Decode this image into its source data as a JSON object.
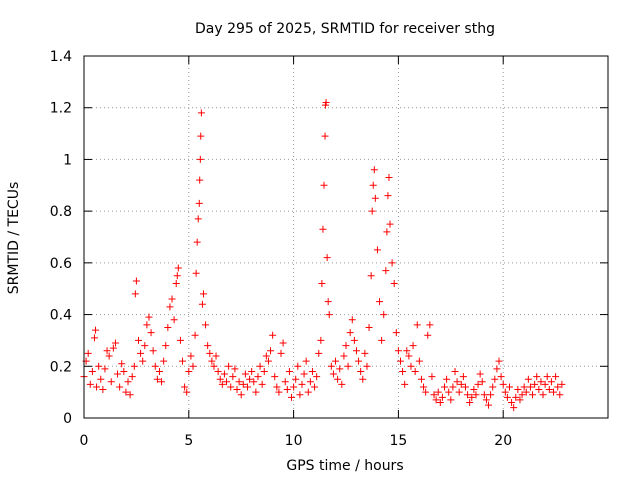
{
  "chart_data": {
    "type": "scatter",
    "title": "Day 295 of 2025, SRMTID for receiver sthg",
    "xlabel": "GPS time / hours",
    "ylabel": "SRMTID / TECUs",
    "xlim": [
      0,
      25
    ],
    "ylim": [
      0,
      1.4
    ],
    "x_ticks": [
      0,
      5,
      10,
      15,
      20
    ],
    "x_tick_labels": [
      "0",
      "5",
      "10",
      "15",
      "20"
    ],
    "y_ticks": [
      0,
      0.2,
      0.4,
      0.6,
      0.8,
      1,
      1.2,
      1.4
    ],
    "y_tick_labels": [
      "0",
      "0.2",
      "0.4",
      "0.6",
      "0.8",
      "1",
      "1.2",
      "1.4"
    ],
    "grid": true,
    "marker": "+",
    "series": [
      {
        "name": "SRMTID",
        "color": "#ff0000",
        "points": [
          [
            0.0,
            0.16
          ],
          [
            0.1,
            0.22
          ],
          [
            0.2,
            0.25
          ],
          [
            0.3,
            0.13
          ],
          [
            0.4,
            0.18
          ],
          [
            0.5,
            0.31
          ],
          [
            0.55,
            0.34
          ],
          [
            0.6,
            0.12
          ],
          [
            0.7,
            0.2
          ],
          [
            0.8,
            0.15
          ],
          [
            0.9,
            0.11
          ],
          [
            1.0,
            0.19
          ],
          [
            1.1,
            0.26
          ],
          [
            1.2,
            0.24
          ],
          [
            1.3,
            0.14
          ],
          [
            1.4,
            0.27
          ],
          [
            1.5,
            0.29
          ],
          [
            1.6,
            0.17
          ],
          [
            1.7,
            0.12
          ],
          [
            1.8,
            0.21
          ],
          [
            1.9,
            0.18
          ],
          [
            2.0,
            0.1
          ],
          [
            2.1,
            0.14
          ],
          [
            2.2,
            0.09
          ],
          [
            2.3,
            0.16
          ],
          [
            2.4,
            0.2
          ],
          [
            2.45,
            0.48
          ],
          [
            2.5,
            0.53
          ],
          [
            2.6,
            0.3
          ],
          [
            2.7,
            0.25
          ],
          [
            2.8,
            0.22
          ],
          [
            2.9,
            0.28
          ],
          [
            3.0,
            0.36
          ],
          [
            3.1,
            0.39
          ],
          [
            3.2,
            0.33
          ],
          [
            3.3,
            0.26
          ],
          [
            3.4,
            0.2
          ],
          [
            3.5,
            0.15
          ],
          [
            3.6,
            0.18
          ],
          [
            3.7,
            0.14
          ],
          [
            3.8,
            0.22
          ],
          [
            3.9,
            0.28
          ],
          [
            4.0,
            0.35
          ],
          [
            4.1,
            0.43
          ],
          [
            4.2,
            0.46
          ],
          [
            4.3,
            0.38
          ],
          [
            4.4,
            0.52
          ],
          [
            4.45,
            0.55
          ],
          [
            4.5,
            0.58
          ],
          [
            4.6,
            0.3
          ],
          [
            4.7,
            0.22
          ],
          [
            4.8,
            0.12
          ],
          [
            4.9,
            0.1
          ],
          [
            5.0,
            0.18
          ],
          [
            5.1,
            0.24
          ],
          [
            5.2,
            0.2
          ],
          [
            5.3,
            0.32
          ],
          [
            5.35,
            0.56
          ],
          [
            5.4,
            0.68
          ],
          [
            5.45,
            0.77
          ],
          [
            5.5,
            0.83
          ],
          [
            5.52,
            0.92
          ],
          [
            5.55,
            1.0
          ],
          [
            5.57,
            1.09
          ],
          [
            5.6,
            1.18
          ],
          [
            5.65,
            0.44
          ],
          [
            5.7,
            0.48
          ],
          [
            5.8,
            0.36
          ],
          [
            5.9,
            0.28
          ],
          [
            6.0,
            0.25
          ],
          [
            6.1,
            0.22
          ],
          [
            6.2,
            0.2
          ],
          [
            6.3,
            0.24
          ],
          [
            6.4,
            0.18
          ],
          [
            6.5,
            0.15
          ],
          [
            6.6,
            0.13
          ],
          [
            6.7,
            0.17
          ],
          [
            6.8,
            0.14
          ],
          [
            6.9,
            0.2
          ],
          [
            7.0,
            0.12
          ],
          [
            7.1,
            0.16
          ],
          [
            7.2,
            0.19
          ],
          [
            7.3,
            0.11
          ],
          [
            7.4,
            0.14
          ],
          [
            7.5,
            0.09
          ],
          [
            7.6,
            0.13
          ],
          [
            7.7,
            0.17
          ],
          [
            7.8,
            0.12
          ],
          [
            7.9,
            0.15
          ],
          [
            8.0,
            0.18
          ],
          [
            8.1,
            0.14
          ],
          [
            8.2,
            0.1
          ],
          [
            8.3,
            0.16
          ],
          [
            8.4,
            0.2
          ],
          [
            8.5,
            0.13
          ],
          [
            8.6,
            0.18
          ],
          [
            8.7,
            0.24
          ],
          [
            8.8,
            0.22
          ],
          [
            8.9,
            0.26
          ],
          [
            9.0,
            0.32
          ],
          [
            9.1,
            0.16
          ],
          [
            9.2,
            0.12
          ],
          [
            9.3,
            0.1
          ],
          [
            9.4,
            0.25
          ],
          [
            9.5,
            0.29
          ],
          [
            9.6,
            0.14
          ],
          [
            9.7,
            0.11
          ],
          [
            9.8,
            0.18
          ],
          [
            9.9,
            0.08
          ],
          [
            10.0,
            0.12
          ],
          [
            10.1,
            0.15
          ],
          [
            10.2,
            0.2
          ],
          [
            10.3,
            0.09
          ],
          [
            10.4,
            0.13
          ],
          [
            10.5,
            0.17
          ],
          [
            10.6,
            0.22
          ],
          [
            10.7,
            0.1
          ],
          [
            10.8,
            0.14
          ],
          [
            10.9,
            0.18
          ],
          [
            11.0,
            0.12
          ],
          [
            11.1,
            0.16
          ],
          [
            11.2,
            0.25
          ],
          [
            11.3,
            0.3
          ],
          [
            11.35,
            0.52
          ],
          [
            11.4,
            0.73
          ],
          [
            11.45,
            0.9
          ],
          [
            11.5,
            1.09
          ],
          [
            11.52,
            1.21
          ],
          [
            11.55,
            1.22
          ],
          [
            11.6,
            0.62
          ],
          [
            11.65,
            0.45
          ],
          [
            11.7,
            0.4
          ],
          [
            11.8,
            0.2
          ],
          [
            11.9,
            0.17
          ],
          [
            12.0,
            0.22
          ],
          [
            12.1,
            0.15
          ],
          [
            12.2,
            0.19
          ],
          [
            12.3,
            0.13
          ],
          [
            12.4,
            0.24
          ],
          [
            12.5,
            0.28
          ],
          [
            12.6,
            0.2
          ],
          [
            12.7,
            0.33
          ],
          [
            12.8,
            0.38
          ],
          [
            12.9,
            0.3
          ],
          [
            13.0,
            0.26
          ],
          [
            13.1,
            0.22
          ],
          [
            13.2,
            0.18
          ],
          [
            13.3,
            0.15
          ],
          [
            13.4,
            0.25
          ],
          [
            13.5,
            0.2
          ],
          [
            13.6,
            0.35
          ],
          [
            13.7,
            0.55
          ],
          [
            13.75,
            0.8
          ],
          [
            13.8,
            0.9
          ],
          [
            13.85,
            0.96
          ],
          [
            13.9,
            0.85
          ],
          [
            14.0,
            0.65
          ],
          [
            14.1,
            0.45
          ],
          [
            14.2,
            0.3
          ],
          [
            14.3,
            0.4
          ],
          [
            14.4,
            0.57
          ],
          [
            14.45,
            0.72
          ],
          [
            14.5,
            0.86
          ],
          [
            14.55,
            0.93
          ],
          [
            14.6,
            0.75
          ],
          [
            14.7,
            0.6
          ],
          [
            14.8,
            0.52
          ],
          [
            14.9,
            0.33
          ],
          [
            15.0,
            0.26
          ],
          [
            15.1,
            0.22
          ],
          [
            15.2,
            0.18
          ],
          [
            15.3,
            0.13
          ],
          [
            15.4,
            0.26
          ],
          [
            15.5,
            0.24
          ],
          [
            15.6,
            0.2
          ],
          [
            15.7,
            0.28
          ],
          [
            15.8,
            0.18
          ],
          [
            15.9,
            0.36
          ],
          [
            16.0,
            0.22
          ],
          [
            16.1,
            0.15
          ],
          [
            16.2,
            0.12
          ],
          [
            16.3,
            0.1
          ],
          [
            16.4,
            0.32
          ],
          [
            16.5,
            0.36
          ],
          [
            16.6,
            0.16
          ],
          [
            16.7,
            0.09
          ],
          [
            16.8,
            0.07
          ],
          [
            16.9,
            0.1
          ],
          [
            17.0,
            0.06
          ],
          [
            17.1,
            0.08
          ],
          [
            17.2,
            0.12
          ],
          [
            17.3,
            0.15
          ],
          [
            17.4,
            0.1
          ],
          [
            17.5,
            0.07
          ],
          [
            17.6,
            0.12
          ],
          [
            17.7,
            0.18
          ],
          [
            17.8,
            0.14
          ],
          [
            17.9,
            0.1
          ],
          [
            18.0,
            0.13
          ],
          [
            18.1,
            0.16
          ],
          [
            18.2,
            0.12
          ],
          [
            18.3,
            0.09
          ],
          [
            18.4,
            0.06
          ],
          [
            18.5,
            0.08
          ],
          [
            18.6,
            0.11
          ],
          [
            18.7,
            0.09
          ],
          [
            18.8,
            0.13
          ],
          [
            18.9,
            0.17
          ],
          [
            19.0,
            0.14
          ],
          [
            19.1,
            0.09
          ],
          [
            19.2,
            0.07
          ],
          [
            19.3,
            0.05
          ],
          [
            19.4,
            0.09
          ],
          [
            19.5,
            0.12
          ],
          [
            19.6,
            0.15
          ],
          [
            19.7,
            0.19
          ],
          [
            19.8,
            0.22
          ],
          [
            19.9,
            0.16
          ],
          [
            20.0,
            0.13
          ],
          [
            20.1,
            0.1
          ],
          [
            20.2,
            0.08
          ],
          [
            20.3,
            0.12
          ],
          [
            20.4,
            0.06
          ],
          [
            20.5,
            0.04
          ],
          [
            20.6,
            0.08
          ],
          [
            20.7,
            0.11
          ],
          [
            20.8,
            0.07
          ],
          [
            20.9,
            0.09
          ],
          [
            21.0,
            0.12
          ],
          [
            21.1,
            0.1
          ],
          [
            21.2,
            0.15
          ],
          [
            21.3,
            0.12
          ],
          [
            21.4,
            0.09
          ],
          [
            21.5,
            0.13
          ],
          [
            21.6,
            0.16
          ],
          [
            21.7,
            0.11
          ],
          [
            21.8,
            0.14
          ],
          [
            21.9,
            0.09
          ],
          [
            22.0,
            0.13
          ],
          [
            22.1,
            0.16
          ],
          [
            22.2,
            0.11
          ],
          [
            22.3,
            0.14
          ],
          [
            22.4,
            0.1
          ],
          [
            22.5,
            0.16
          ],
          [
            22.6,
            0.12
          ],
          [
            22.7,
            0.09
          ],
          [
            22.8,
            0.13
          ]
        ]
      }
    ]
  }
}
